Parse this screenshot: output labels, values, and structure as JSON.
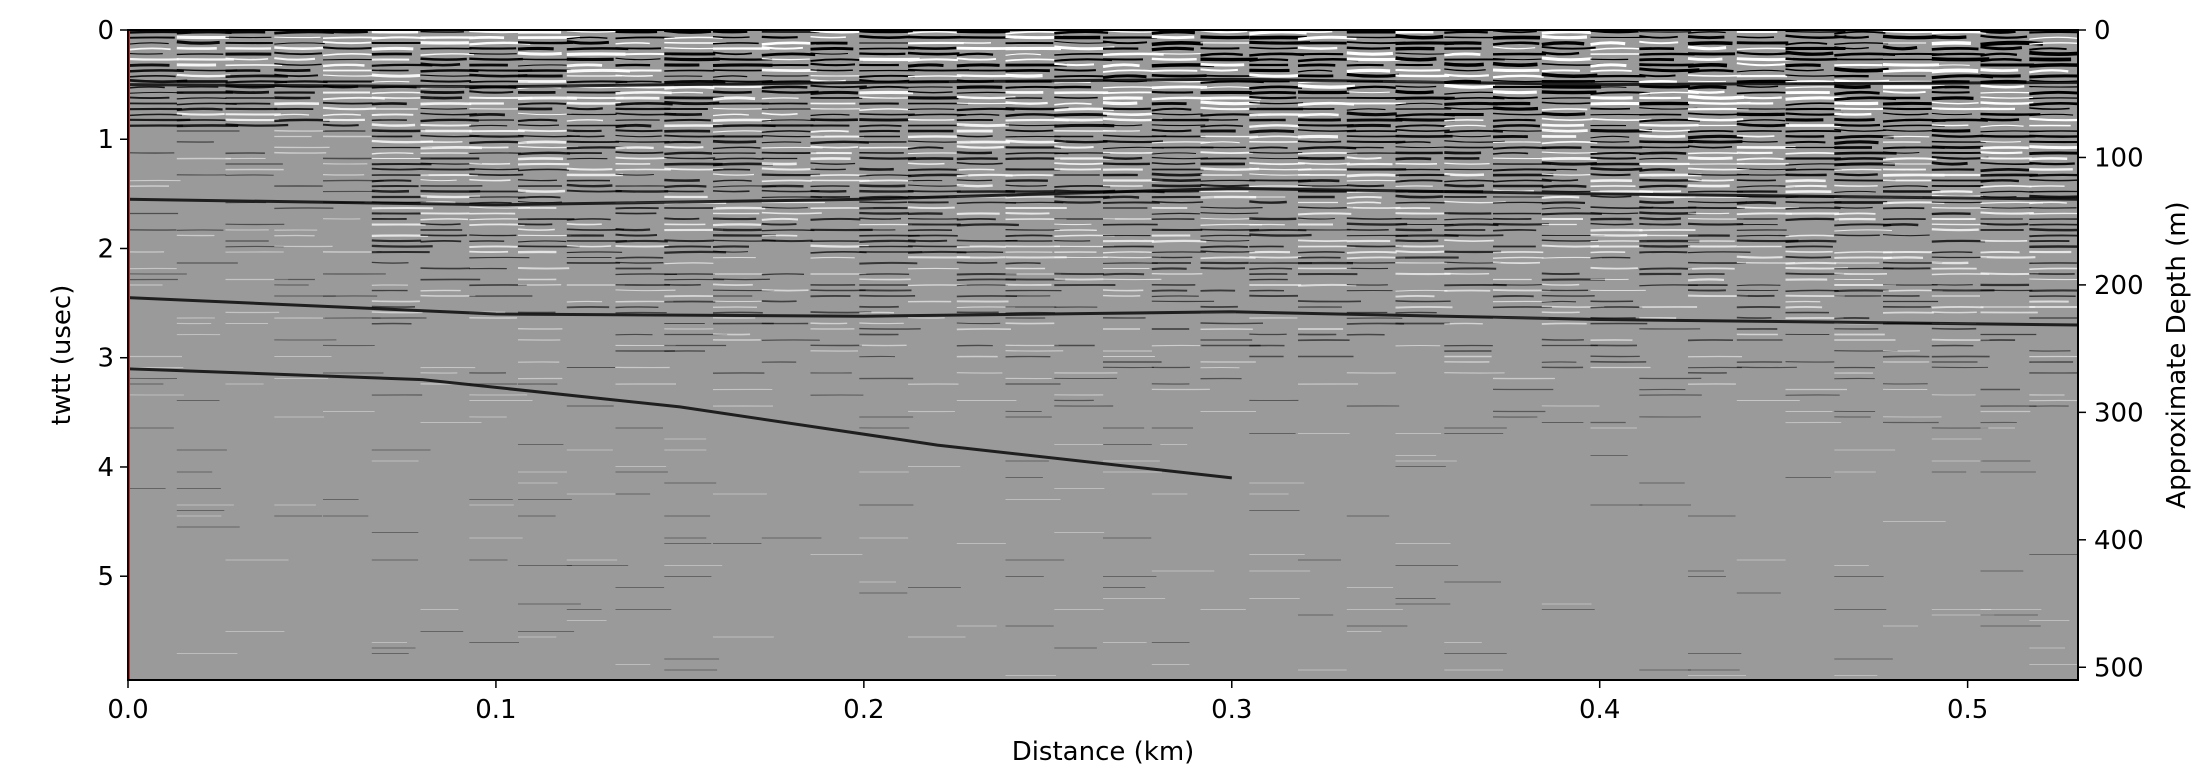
{
  "chart_data": {
    "type": "heatmap",
    "title": "",
    "colormap": "gray",
    "xlabel": "Distance (km)",
    "ylabel": "twtt (usec)",
    "ylabel_right": "Approximate Depth (m)",
    "xlim": [
      0.0,
      0.53
    ],
    "ylim": [
      5.95,
      0.0
    ],
    "ylim_right": [
      510,
      0
    ],
    "x_ticks": [
      0.0,
      0.1,
      0.2,
      0.3,
      0.4,
      0.5
    ],
    "x_tick_labels": [
      "0.0",
      "0.1",
      "0.2",
      "0.3",
      "0.4",
      "0.5"
    ],
    "y_ticks": [
      0,
      1,
      2,
      3,
      4,
      5
    ],
    "y_tick_labels": [
      "0",
      "1",
      "2",
      "3",
      "4",
      "5"
    ],
    "y_right_ticks": [
      0,
      100,
      200,
      300,
      400,
      500
    ],
    "y_right_tick_labels": [
      "0",
      "100",
      "200",
      "300",
      "400",
      "500"
    ],
    "grid": false,
    "vertical_marker": {
      "x": 0.0,
      "color": "#d62728"
    },
    "reflectors": [
      {
        "x": [
          0.0,
          0.1,
          0.2,
          0.3,
          0.4,
          0.53
        ],
        "y": [
          2.45,
          2.6,
          2.62,
          2.58,
          2.65,
          2.7
        ]
      },
      {
        "x": [
          0.0,
          0.08,
          0.15,
          0.22,
          0.3
        ],
        "y": [
          3.1,
          3.2,
          3.45,
          3.8,
          4.1
        ]
      },
      {
        "x": [
          0.0,
          0.1,
          0.2,
          0.3,
          0.4,
          0.53
        ],
        "y": [
          1.55,
          1.6,
          1.55,
          1.45,
          1.5,
          1.55
        ]
      },
      {
        "x": [
          0.0,
          0.1,
          0.2,
          0.3,
          0.4,
          0.53
        ],
        "y": [
          0.5,
          0.52,
          0.48,
          0.45,
          0.5,
          0.48
        ]
      }
    ]
  }
}
